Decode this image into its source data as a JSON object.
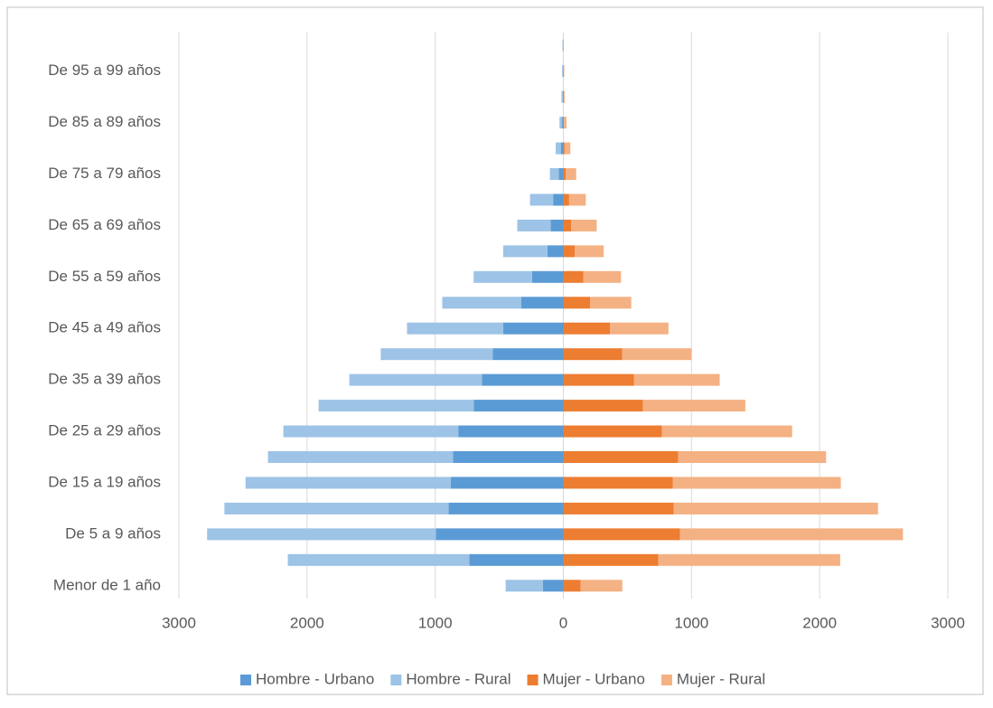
{
  "chart_data": {
    "type": "bar",
    "orientation": "horizontal",
    "stacked": true,
    "categories": [
      "Menor de 1 año",
      null,
      "De 5 a 9 años",
      null,
      "De 15 a 19 años",
      null,
      "De 25 a 29 años",
      null,
      "De 35 a 39 años",
      null,
      "De 45 a 49 años",
      null,
      "De 55 a 59 años",
      null,
      "De 65 a 69 años",
      null,
      "De 75 a 79 años",
      null,
      "De 85 a 89 años",
      null,
      "De 95 a 99 años",
      null
    ],
    "series": [
      {
        "name": "Hombre - Urbano",
        "color": "#5b9bd5",
        "values": [
          -160,
          -735,
          -995,
          -895,
          -880,
          -860,
          -820,
          -700,
          -635,
          -550,
          -470,
          -330,
          -245,
          -125,
          -100,
          -80,
          -35,
          -20,
          -10,
          -5,
          -3,
          -2
        ]
      },
      {
        "name": "Hombre - Rural",
        "color": "#9dc3e6",
        "values": [
          -290,
          -1415,
          -1785,
          -1750,
          -1600,
          -1445,
          -1365,
          -1210,
          -1035,
          -875,
          -750,
          -615,
          -455,
          -345,
          -260,
          -180,
          -70,
          -40,
          -20,
          -10,
          -7,
          -5
        ]
      },
      {
        "name": "Mujer - Urbano",
        "color": "#ed7d31",
        "values": [
          135,
          740,
          910,
          860,
          855,
          895,
          770,
          620,
          550,
          460,
          365,
          210,
          155,
          90,
          60,
          45,
          20,
          10,
          5,
          3,
          2,
          1
        ]
      },
      {
        "name": "Mujer - Rural",
        "color": "#f4b183",
        "values": [
          325,
          1420,
          1740,
          1595,
          1310,
          1155,
          1015,
          800,
          670,
          540,
          455,
          320,
          295,
          225,
          200,
          130,
          80,
          45,
          20,
          7,
          5,
          3
        ]
      }
    ],
    "xlim": [
      -3000,
      3000
    ],
    "xticks": [
      {
        "value": -3000,
        "label": "3000"
      },
      {
        "value": -2000,
        "label": "2000"
      },
      {
        "value": -1000,
        "label": "1000"
      },
      0,
      1000,
      2000,
      3000
    ],
    "grid": true,
    "legend": "bottom"
  }
}
